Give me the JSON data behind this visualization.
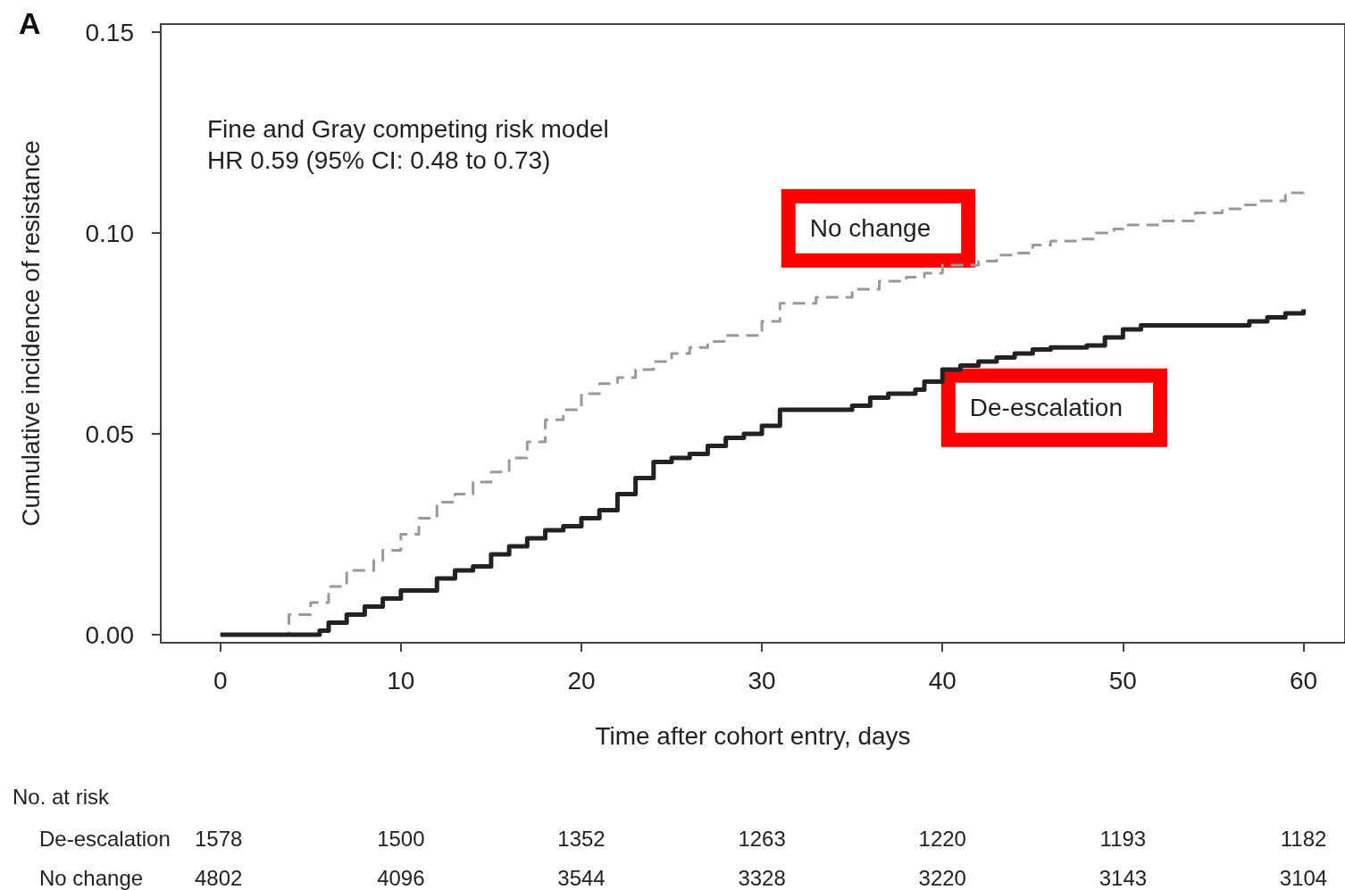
{
  "chart_data": {
    "type": "step",
    "title": "A",
    "xlabel": "Time after cohort entry, days",
    "ylabel": "Cumulative incidence of resistance",
    "xlim": [
      -3.3,
      62.3
    ],
    "xticks": [
      0,
      10,
      20,
      30,
      40,
      50,
      60
    ],
    "ylim": [
      -0.002,
      0.152
    ],
    "yticks": [
      {
        "value": 0,
        "label": "0.00"
      },
      {
        "value": 0.05,
        "label": "0.05"
      },
      {
        "value": 0.1,
        "label": "0.10"
      },
      {
        "value": 0.15,
        "label": "0.15"
      }
    ],
    "grid": false,
    "legend": false,
    "marker": "none",
    "series": [
      {
        "name": "No change",
        "color": "#9a9a9a",
        "line_style": "dashed",
        "x": [
          0,
          3.8,
          5,
          6,
          7,
          8.5,
          9,
          10,
          11,
          12,
          13,
          14,
          15,
          16,
          17,
          18,
          19,
          20,
          21,
          22,
          23,
          24,
          25,
          26,
          27,
          28,
          30,
          31,
          33,
          35,
          36.5,
          38,
          39,
          40,
          42,
          43,
          44,
          45,
          46,
          47.5,
          48.5,
          49.5,
          50,
          52,
          54,
          55.5,
          56.5,
          57.5,
          59,
          60
        ],
        "values": [
          0,
          0.005,
          0.008,
          0.012,
          0.016,
          0.0185,
          0.021,
          0.025,
          0.029,
          0.033,
          0.035,
          0.038,
          0.0405,
          0.044,
          0.048,
          0.0535,
          0.056,
          0.06,
          0.0625,
          0.064,
          0.066,
          0.068,
          0.07,
          0.0715,
          0.073,
          0.0745,
          0.078,
          0.0825,
          0.084,
          0.086,
          0.088,
          0.089,
          0.09,
          0.092,
          0.093,
          0.0945,
          0.095,
          0.097,
          0.098,
          0.0985,
          0.1,
          0.101,
          0.102,
          0.103,
          0.105,
          0.106,
          0.107,
          0.108,
          0.11,
          0.111
        ]
      },
      {
        "name": "De-escalation",
        "color": "#222222",
        "line_style": "solid",
        "x": [
          0,
          4,
          5.5,
          6,
          7,
          8,
          9,
          10,
          12,
          13,
          14,
          15,
          16,
          17,
          18,
          19,
          20,
          21,
          22,
          23,
          24,
          25,
          26,
          27,
          28,
          29,
          30,
          31,
          35,
          36,
          37,
          38.5,
          39,
          40,
          41,
          42,
          43,
          44,
          45,
          46,
          48,
          49,
          50,
          51,
          57,
          58,
          59,
          60
        ],
        "values": [
          0,
          0,
          0.001,
          0.003,
          0.005,
          0.007,
          0.009,
          0.011,
          0.014,
          0.016,
          0.017,
          0.02,
          0.022,
          0.024,
          0.026,
          0.027,
          0.029,
          0.031,
          0.035,
          0.039,
          0.043,
          0.044,
          0.045,
          0.047,
          0.049,
          0.05,
          0.052,
          0.056,
          0.057,
          0.059,
          0.06,
          0.061,
          0.063,
          0.066,
          0.067,
          0.068,
          0.069,
          0.07,
          0.071,
          0.0715,
          0.072,
          0.074,
          0.076,
          0.077,
          0.078,
          0.079,
          0.08,
          0.081
        ]
      }
    ],
    "annotations": [
      "Fine and Gray competing risk model",
      "HR 0.59 (95% CI: 0.48 to 0.73)",
      "No. at risk",
      "De-escalation",
      "1578",
      "1500",
      "1352",
      "1263",
      "1220",
      "1193",
      "1182",
      "No change",
      "4802",
      "4096",
      "3544",
      "3328",
      "3220",
      "3143",
      "3104"
    ]
  }
}
